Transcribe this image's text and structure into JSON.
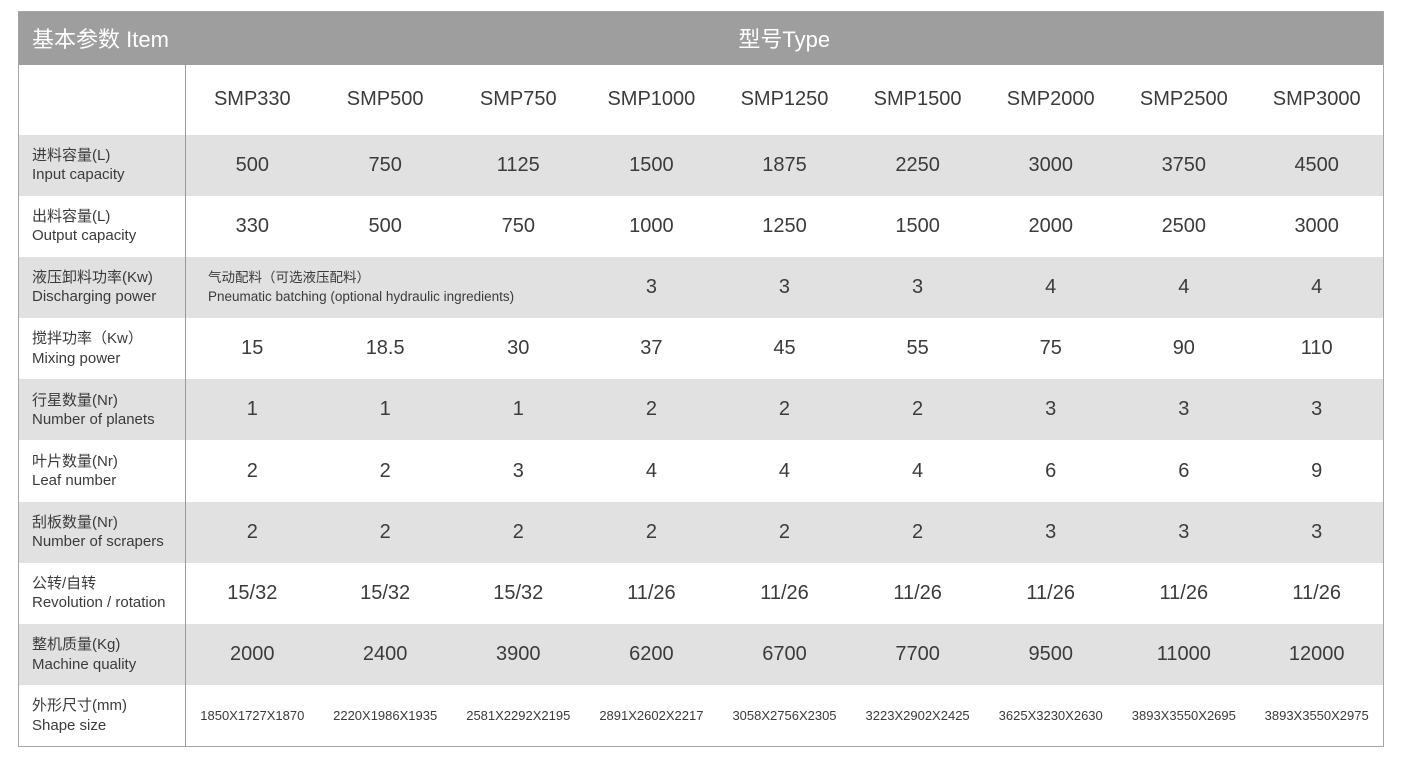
{
  "title_bar": {
    "item_label": "基本参数 Item",
    "type_label": "型号Type"
  },
  "chart_data": {
    "type": "table",
    "columns": [
      "SMP330",
      "SMP500",
      "SMP750",
      "SMP1000",
      "SMP1250",
      "SMP1500",
      "SMP2000",
      "SMP2500",
      "SMP3000"
    ],
    "rows": [
      {
        "label_zh": "进料容量(L)",
        "label_en": "Input capacity",
        "values": [
          "500",
          "750",
          "1125",
          "1500",
          "1875",
          "2250",
          "3000",
          "3750",
          "4500"
        ]
      },
      {
        "label_zh": "出料容量(L)",
        "label_en": "Output capacity",
        "values": [
          "330",
          "500",
          "750",
          "1000",
          "1250",
          "1500",
          "2000",
          "2500",
          "3000"
        ]
      },
      {
        "label_zh": "液压卸料功率(Kw)",
        "label_en": "Discharging power",
        "merged_cell": {
          "colspan": 3,
          "line1": "气动配料（可选液压配料）",
          "line2": "Pneumatic batching (optional hydraulic ingredients)"
        },
        "values": [
          "3",
          "3",
          "3",
          "4",
          "4",
          "4"
        ]
      },
      {
        "label_zh": "搅拌功率（Kw）",
        "label_en": "Mixing power",
        "values": [
          "15",
          "18.5",
          "30",
          "37",
          "45",
          "55",
          "75",
          "90",
          "110"
        ]
      },
      {
        "label_zh": "行星数量(Nr)",
        "label_en": "Number of planets",
        "values": [
          "1",
          "1",
          "1",
          "2",
          "2",
          "2",
          "3",
          "3",
          "3"
        ]
      },
      {
        "label_zh": "叶片数量(Nr)",
        "label_en": "Leaf number",
        "values": [
          "2",
          "2",
          "3",
          "4",
          "4",
          "4",
          "6",
          "6",
          "9"
        ]
      },
      {
        "label_zh": "刮板数量(Nr)",
        "label_en": "Number of scrapers",
        "values": [
          "2",
          "2",
          "2",
          "2",
          "2",
          "2",
          "3",
          "3",
          "3"
        ]
      },
      {
        "label_zh": "公转/自转",
        "label_en": "Revolution / rotation",
        "values": [
          "15/32",
          "15/32",
          "15/32",
          "11/26",
          "11/26",
          "11/26",
          "11/26",
          "11/26",
          "11/26"
        ]
      },
      {
        "label_zh": "整机质量(Kg)",
        "label_en": "Machine quality",
        "values": [
          "2000",
          "2400",
          "3900",
          "6200",
          "6700",
          "7700",
          "9500",
          "11000",
          "12000"
        ]
      },
      {
        "label_zh": "外形尺寸(mm)",
        "label_en": "Shape size",
        "values": [
          "1850X1727X1870",
          "2220X1986X1935",
          "2581X2292X2195",
          "2891X2602X2217",
          "3058X2756X2305",
          "3223X2902X2425",
          "3625X3230X2630",
          "3893X3550X2695",
          "3893X3550X2975"
        ]
      }
    ]
  },
  "colors": {
    "header_bg": "#9e9e9e",
    "header_text": "#ffffff",
    "row_alt_bg": "#e1e1e1",
    "row_bg": "#ffffff",
    "border": "#9a9a9a",
    "text": "#3b3b3b"
  }
}
